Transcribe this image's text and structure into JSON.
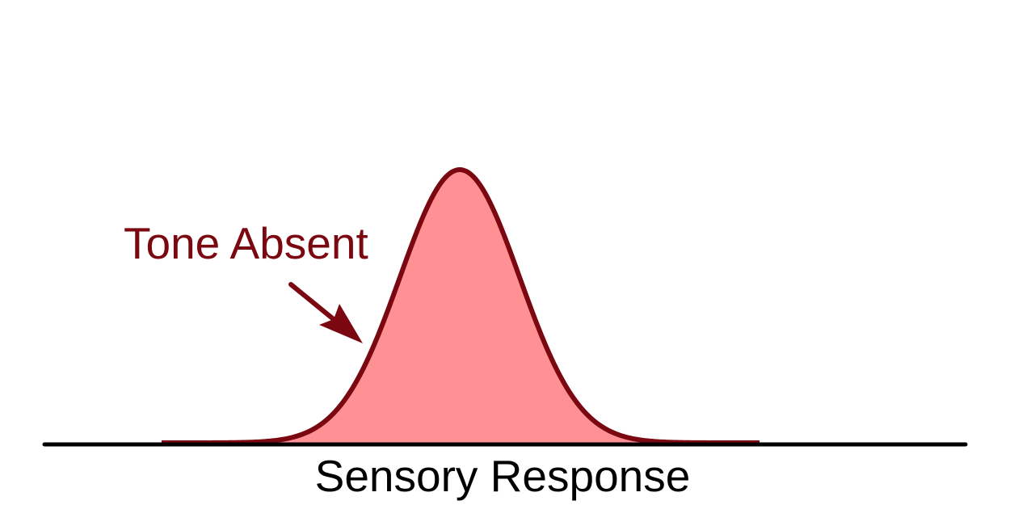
{
  "diagram": {
    "annotation_label": "Tone Absent",
    "axis_label": "Sensory Response",
    "colors": {
      "curve_stroke": "#7b0710",
      "curve_fill": "#ff9094",
      "axis": "#000000",
      "annotation": "#7b0710"
    },
    "icons": {
      "annotation_arrow": "arrow-down-right-icon"
    }
  }
}
